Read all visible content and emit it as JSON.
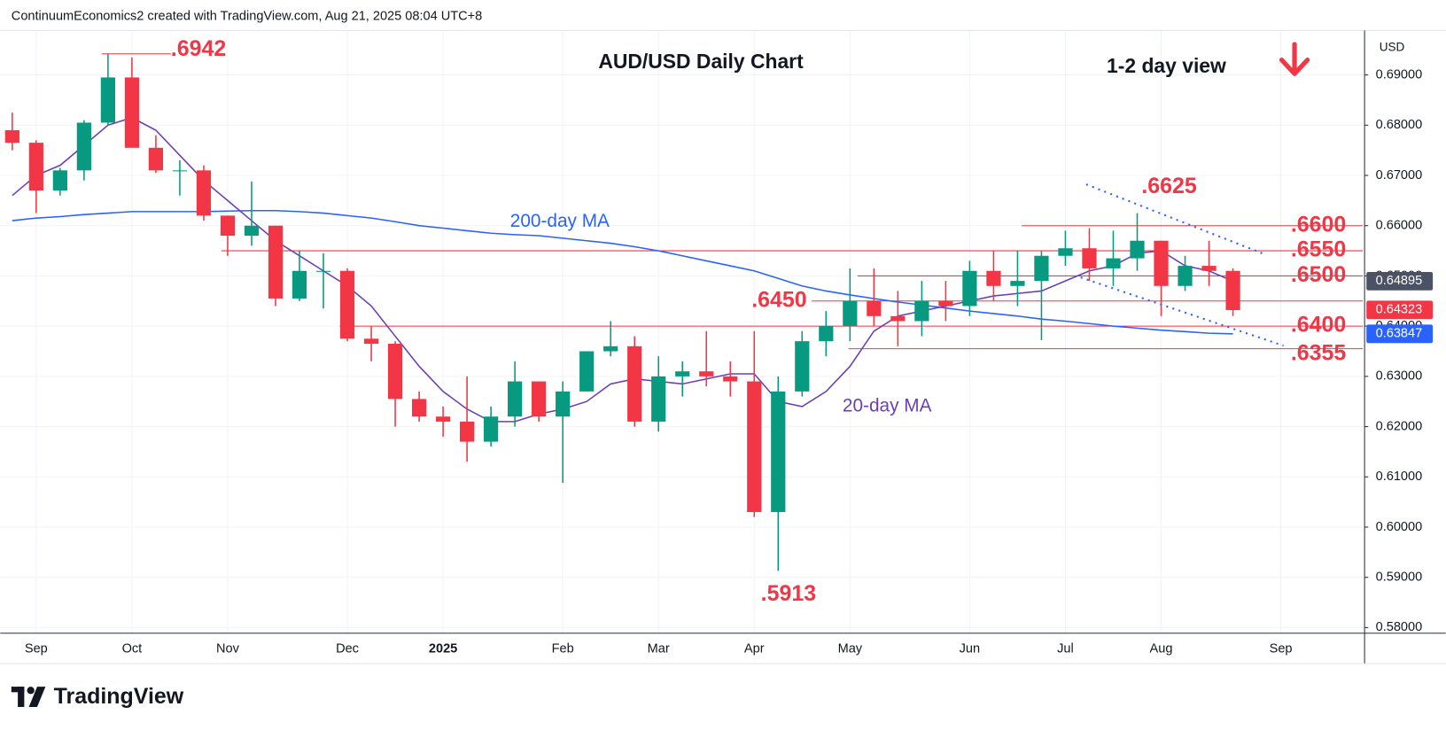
{
  "header": "ContinuumEconomics2 created with TradingView.com, Aug 21, 2025 08:04 UTC+8",
  "brand": "TradingView",
  "chart_data": {
    "type": "candlestick",
    "title": "AUD/USD Daily Chart",
    "subtitle": "1-2 day view",
    "currency": "USD",
    "categories": [
      null,
      "Sep",
      null,
      null,
      null,
      "Oct",
      null,
      null,
      null,
      "Nov",
      null,
      null,
      null,
      null,
      "Dec",
      null,
      null,
      null,
      "2025",
      null,
      null,
      null,
      null,
      "Feb",
      null,
      null,
      null,
      "Mar",
      null,
      null,
      null,
      "Apr",
      null,
      null,
      null,
      "May",
      null,
      null,
      null,
      null,
      "Jun",
      null,
      null,
      null,
      "Jul",
      null,
      null,
      null,
      "Aug",
      null,
      null,
      null,
      null,
      "Sep",
      null,
      null,
      null
    ],
    "open": [
      0.679,
      0.6765,
      0.667,
      0.671,
      0.6805,
      0.6895,
      0.6755,
      0.671,
      0.671,
      0.662,
      0.658,
      0.66,
      0.6455,
      0.651,
      0.651,
      0.6375,
      0.6365,
      0.6255,
      0.622,
      0.621,
      0.617,
      0.622,
      0.629,
      0.622,
      0.627,
      0.635,
      0.636,
      0.621,
      0.63,
      0.631,
      0.63,
      0.629,
      0.603,
      0.627,
      0.637,
      0.64,
      0.645,
      0.642,
      0.641,
      0.645,
      0.644,
      0.651,
      0.648,
      0.649,
      0.654,
      0.6555,
      0.6515,
      0.6535,
      0.657,
      0.648,
      0.652,
      0.651,
      null,
      null,
      null,
      null,
      null
    ],
    "high": [
      0.6825,
      0.677,
      0.6715,
      0.681,
      0.6942,
      0.6935,
      0.678,
      0.673,
      0.672,
      0.662,
      0.6688,
      0.66,
      0.655,
      0.6545,
      0.6515,
      0.64,
      0.637,
      0.627,
      0.624,
      0.63,
      0.624,
      0.633,
      0.629,
      0.629,
      0.635,
      0.641,
      0.638,
      0.634,
      0.633,
      0.639,
      0.633,
      0.639,
      0.63,
      0.639,
      0.643,
      0.6515,
      0.6515,
      0.647,
      0.649,
      0.649,
      0.653,
      0.655,
      0.655,
      0.655,
      0.659,
      0.6595,
      0.659,
      0.6625,
      0.657,
      0.654,
      0.657,
      0.6515,
      null,
      null,
      null,
      null,
      null
    ],
    "low": [
      0.675,
      0.6625,
      0.666,
      0.669,
      0.68,
      0.676,
      0.6705,
      0.666,
      0.661,
      0.654,
      0.656,
      0.644,
      0.645,
      0.6435,
      0.637,
      0.633,
      0.62,
      0.621,
      0.618,
      0.613,
      0.616,
      0.62,
      0.621,
      0.6088,
      0.627,
      0.634,
      0.62,
      0.619,
      0.626,
      0.628,
      0.626,
      0.602,
      0.5913,
      0.626,
      0.634,
      0.637,
      0.64,
      0.636,
      0.638,
      0.641,
      0.642,
      0.645,
      0.644,
      0.6372,
      0.652,
      0.649,
      0.648,
      0.651,
      0.642,
      0.647,
      0.648,
      0.642,
      null,
      null,
      null,
      null,
      null
    ],
    "close": [
      0.6765,
      0.667,
      0.671,
      0.6805,
      0.6895,
      0.6755,
      0.671,
      0.671,
      0.662,
      0.658,
      0.66,
      0.6455,
      0.651,
      0.651,
      0.6375,
      0.6365,
      0.6255,
      0.622,
      0.621,
      0.617,
      0.622,
      0.629,
      0.622,
      0.627,
      0.635,
      0.636,
      0.621,
      0.63,
      0.631,
      0.63,
      0.629,
      0.603,
      0.627,
      0.637,
      0.64,
      0.645,
      0.642,
      0.641,
      0.645,
      0.644,
      0.651,
      0.648,
      0.649,
      0.654,
      0.6555,
      0.6515,
      0.6535,
      0.657,
      0.648,
      0.652,
      0.651,
      0.6432,
      null,
      null,
      null,
      null,
      null
    ],
    "up_color": "#089981",
    "down_color": "#f23645",
    "moving_averages": [
      {
        "name": "200-day MA",
        "color": "#2962ff",
        "values": [
          0.661,
          0.6615,
          0.6618,
          0.6622,
          0.6625,
          0.6628,
          0.6628,
          0.6628,
          0.6628,
          0.6629,
          0.663,
          0.663,
          0.6628,
          0.6625,
          0.662,
          0.6615,
          0.6608,
          0.66,
          0.6595,
          0.659,
          0.6585,
          0.6582,
          0.658,
          0.6575,
          0.657,
          0.6565,
          0.6558,
          0.655,
          0.654,
          0.653,
          0.652,
          0.651,
          0.6495,
          0.648,
          0.647,
          0.6462,
          0.6455,
          0.6448,
          0.6442,
          0.6436,
          0.643,
          0.6425,
          0.642,
          0.6414,
          0.641,
          0.6405,
          0.64,
          0.6396,
          0.6392,
          0.6389,
          0.6386,
          0.63847,
          null,
          null,
          null,
          null,
          null
        ]
      },
      {
        "name": "20-day MA",
        "color": "#6a3fb5",
        "values": [
          0.666,
          0.67,
          0.672,
          0.676,
          0.68,
          0.6815,
          0.679,
          0.674,
          0.669,
          0.665,
          0.661,
          0.657,
          0.654,
          0.651,
          0.648,
          0.644,
          0.638,
          0.632,
          0.627,
          0.6235,
          0.621,
          0.621,
          0.6225,
          0.6235,
          0.625,
          0.6285,
          0.6295,
          0.629,
          0.6285,
          0.6295,
          0.6305,
          0.6305,
          0.625,
          0.624,
          0.627,
          0.632,
          0.639,
          0.642,
          0.643,
          0.644,
          0.645,
          0.646,
          0.6465,
          0.647,
          0.649,
          0.651,
          0.652,
          0.6545,
          0.655,
          0.652,
          0.651,
          0.64895,
          null,
          null,
          null,
          null,
          null
        ]
      }
    ],
    "levels": [
      {
        "label": ".6942",
        "value": 0.6942
      },
      {
        "label": ".6625",
        "value": 0.6625
      },
      {
        "label": ".6600",
        "value": 0.66
      },
      {
        "label": ".6550",
        "value": 0.655
      },
      {
        "label": ".6500",
        "value": 0.65
      },
      {
        "label": ".6450",
        "value": 0.645
      },
      {
        "label": ".6400",
        "value": 0.64
      },
      {
        "label": ".6355",
        "value": 0.6355
      },
      {
        "label": ".5913",
        "value": 0.5913
      }
    ],
    "level_color": "#f23645",
    "price_labels": [
      {
        "label": "0.64895",
        "value": 0.64895,
        "color": "#4b5266"
      },
      {
        "label": "0.64323",
        "value": 0.64323,
        "color": "#f23645"
      },
      {
        "label": "0.63847",
        "value": 0.63847,
        "color": "#2962ff"
      }
    ],
    "ylim": [
      0.57888,
      0.69886
    ],
    "yticks": [
      {
        "value": 0.58,
        "label": "0.58000"
      },
      {
        "value": 0.59,
        "label": "0.59000"
      },
      {
        "value": 0.6,
        "label": "0.60000"
      },
      {
        "value": 0.61,
        "label": "0.61000"
      },
      {
        "value": 0.62,
        "label": "0.62000"
      },
      {
        "value": 0.63,
        "label": "0.63000"
      },
      {
        "value": 0.64,
        "label": "0.64000"
      },
      {
        "value": 0.65,
        "label": "0.65000"
      },
      {
        "value": 0.66,
        "label": "0.66000"
      },
      {
        "value": 0.67,
        "label": "0.67000"
      },
      {
        "value": 0.68,
        "label": "0.68000"
      },
      {
        "value": 0.69,
        "label": "0.69000"
      }
    ],
    "grid": true
  }
}
